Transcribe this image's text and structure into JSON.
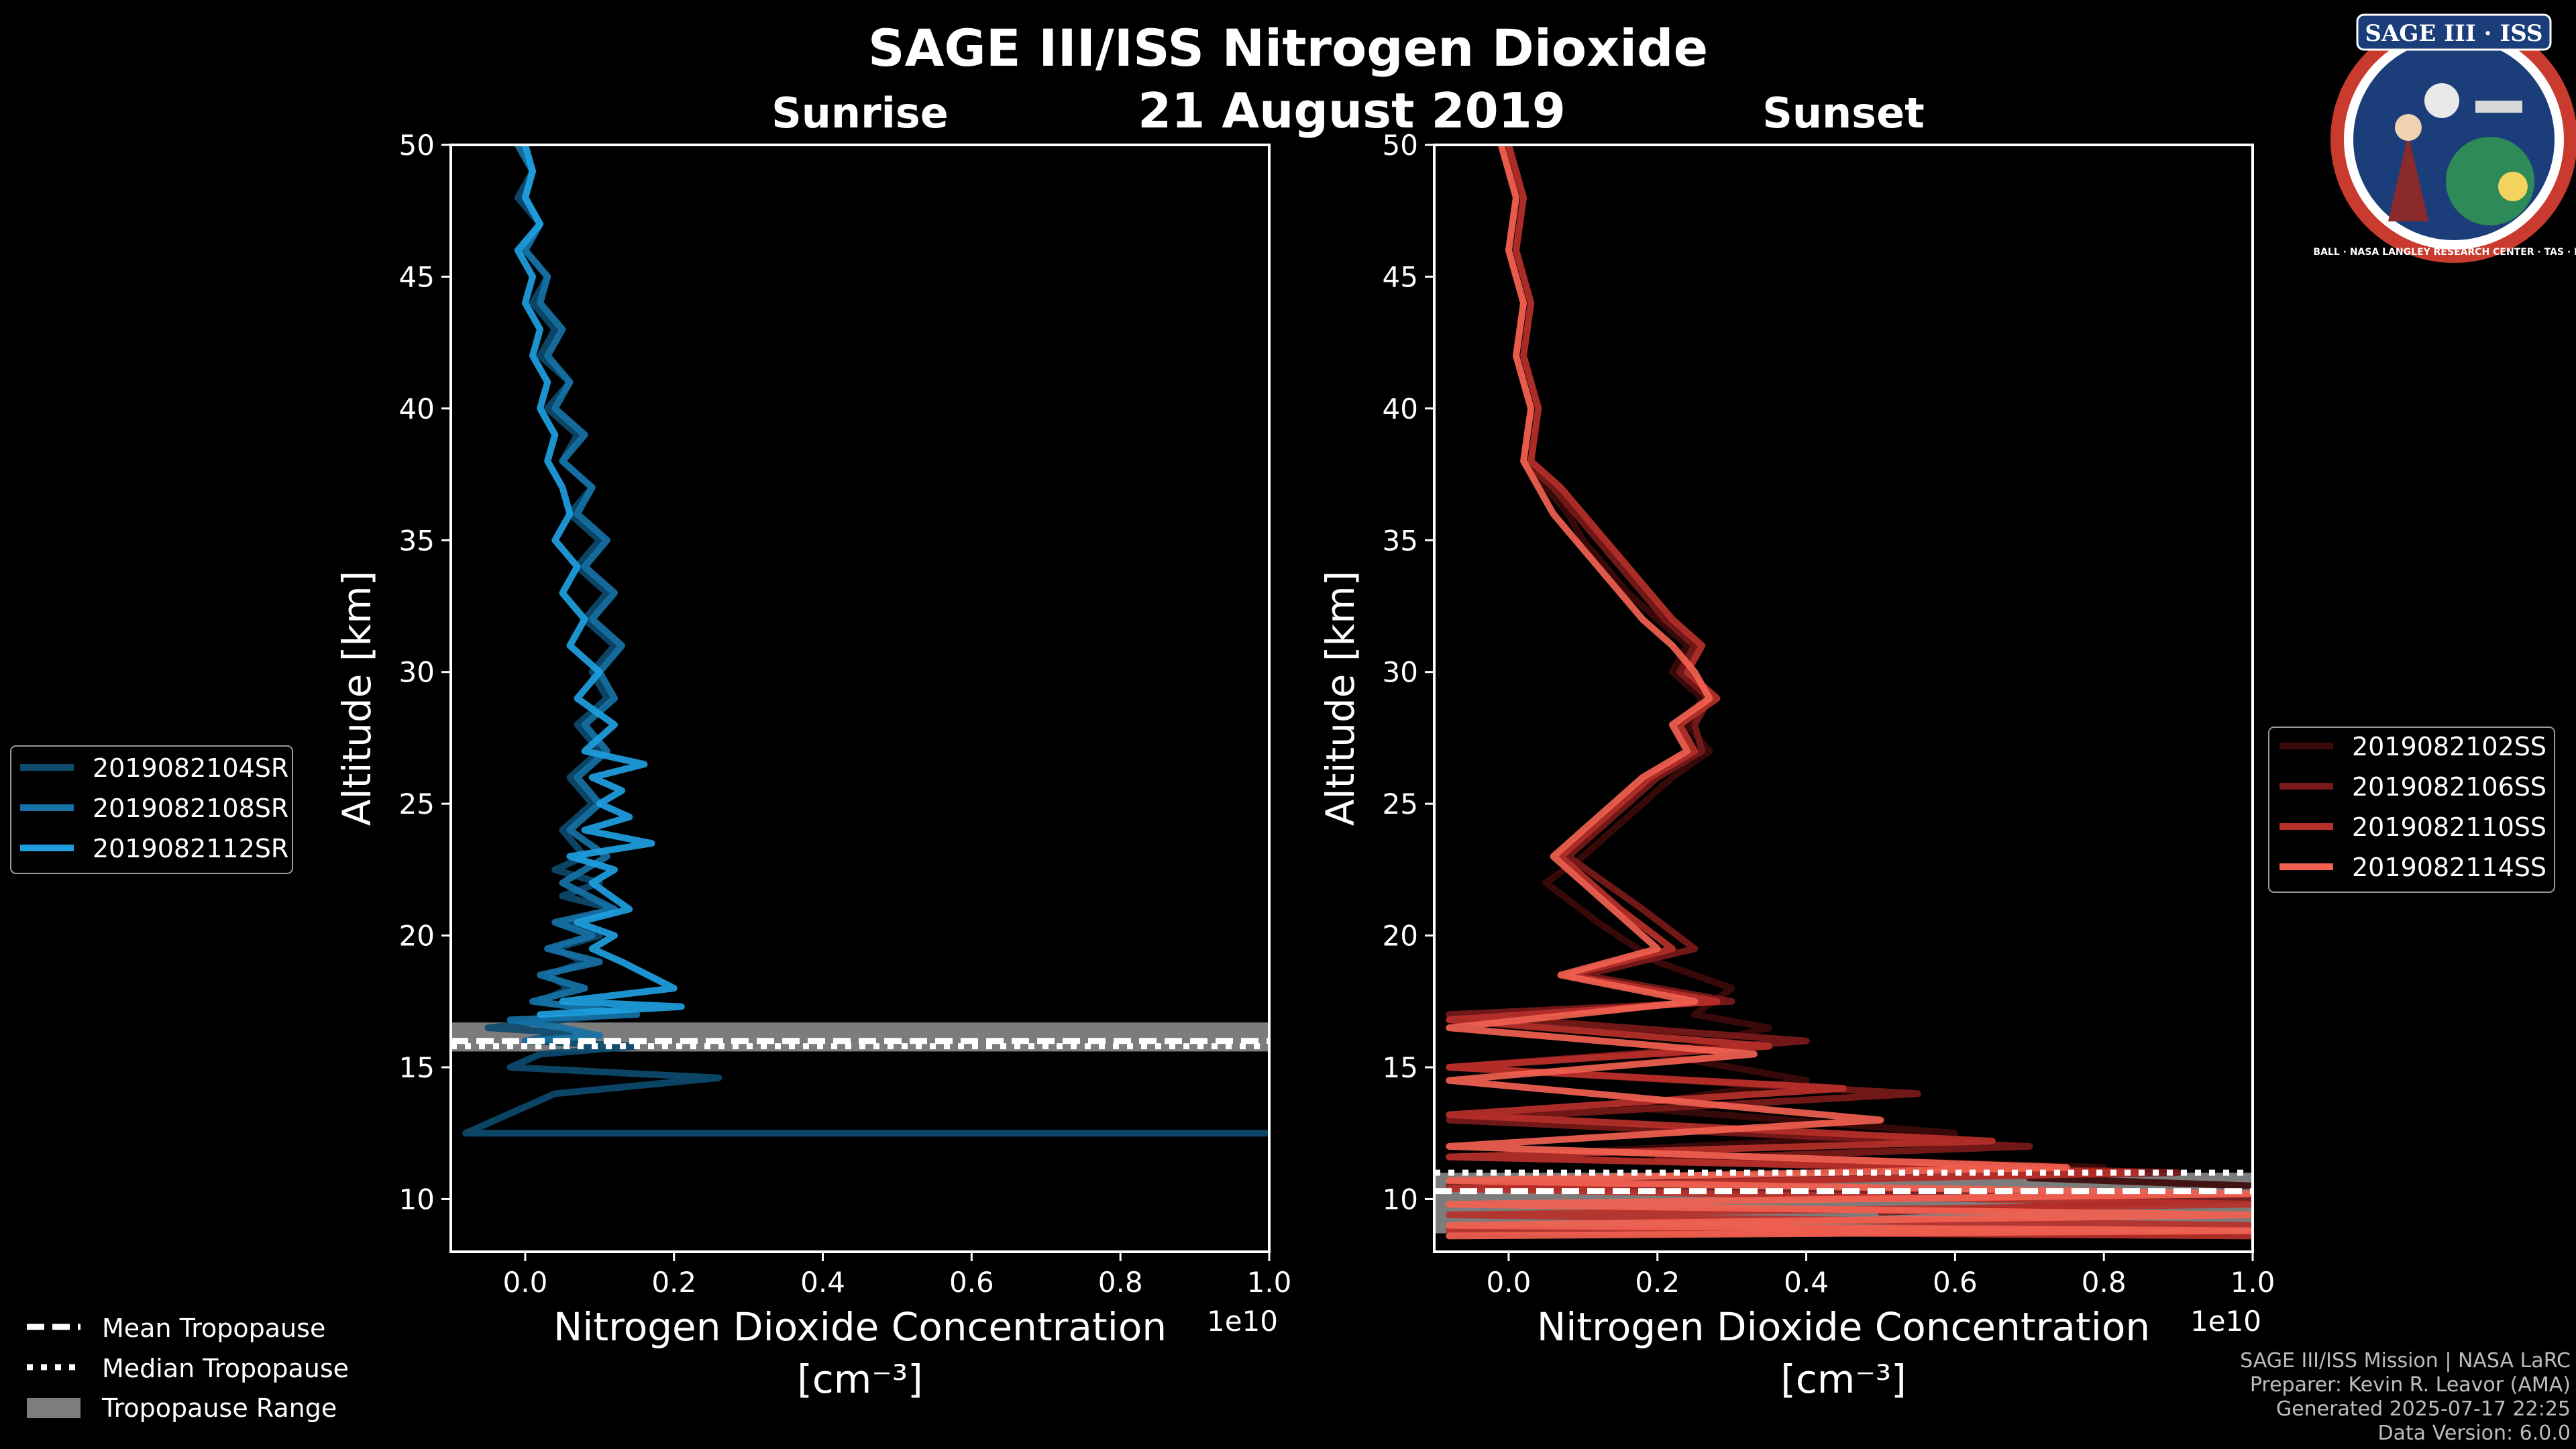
{
  "figure": {
    "title": "SAGE III/ISS Nitrogen Dioxide",
    "date": "21 August 2019",
    "colors": {
      "background": "#000000",
      "axis": "#ffffff",
      "tropopause_band": "#8a8a8a"
    }
  },
  "logo": {
    "text": "SAGE III · ISS",
    "ring_text": "BALL · NASA LANGLEY RESEARCH CENTER · TAS · ESA"
  },
  "credits": {
    "line1": "SAGE III/ISS Mission | NASA LaRC",
    "line2": "Preparer: Kevin R. Leavor (AMA)",
    "line3": "Generated 2025-07-17 22:25",
    "line4": "Data Version: 6.0.0"
  },
  "tropopause_legend": {
    "mean": "Mean Tropopause",
    "median": "Median Tropopause",
    "range": "Tropopause Range"
  },
  "chart_data": [
    {
      "type": "line",
      "title": "Sunrise",
      "xlabel": "Nitrogen Dioxide Concentration",
      "xunit": "[cm$^{-3}$]",
      "xunit_display": "[cm⁻³]",
      "ylabel": "Altitude [km]",
      "x_offset_label": "1e10",
      "xlim": [
        -0.1,
        1.0
      ],
      "ylim": [
        8,
        50
      ],
      "xticks": [
        "0.0",
        "0.2",
        "0.4",
        "0.6",
        "0.8",
        "1.0"
      ],
      "xtick_values": [
        0.0,
        0.2,
        0.4,
        0.6,
        0.8,
        1.0
      ],
      "yticks": [
        10,
        15,
        20,
        25,
        30,
        35,
        40,
        45,
        50
      ],
      "tropopause": {
        "mean": 16.0,
        "median": 15.8,
        "min": 15.6,
        "max": 16.7
      },
      "legend_position": "left-outside",
      "series": [
        {
          "name": "2019082104SR",
          "color": "#0d4a6e",
          "x": [
            0.0,
            0.01,
            -0.01,
            0.02,
            0.0,
            0.03,
            0.01,
            0.04,
            0.02,
            0.06,
            0.03,
            0.07,
            0.05,
            0.09,
            0.06,
            0.1,
            0.07,
            0.11,
            0.08,
            0.12,
            0.09,
            0.11,
            0.07,
            0.1,
            0.06,
            0.09,
            0.05,
            0.08,
            0.04,
            0.1,
            0.05,
            0.12,
            0.06,
            0.1,
            0.04,
            0.08,
            0.03,
            0.06,
            0.02,
            0.08,
            0.12,
            0.05,
            -0.05,
            0.06,
            0.0,
            0.15,
            0.02,
            -0.02,
            0.26,
            0.04,
            0.0,
            -0.08,
            1.0,
            -0.08
          ],
          "y": [
            50.0,
            49.0,
            48.0,
            47.0,
            46.0,
            45.0,
            44.0,
            43.0,
            42.0,
            41.0,
            40.0,
            39.0,
            38.0,
            37.0,
            36.0,
            35.0,
            34.0,
            33.0,
            32.0,
            31.0,
            30.0,
            29.0,
            28.0,
            27.0,
            26.0,
            25.0,
            24.0,
            23.0,
            22.5,
            22.0,
            21.5,
            21.0,
            20.5,
            20.0,
            19.5,
            19.0,
            18.5,
            18.0,
            17.5,
            17.2,
            17.0,
            16.8,
            16.5,
            16.3,
            16.0,
            15.8,
            15.5,
            15.0,
            14.6,
            14.0,
            13.5,
            12.5,
            12.5,
            12.5
          ]
        },
        {
          "name": "2019082108SR",
          "color": "#1672a6",
          "x": [
            -0.01,
            0.01,
            0.0,
            0.02,
            0.0,
            0.03,
            0.02,
            0.05,
            0.03,
            0.06,
            0.04,
            0.08,
            0.05,
            0.09,
            0.07,
            0.11,
            0.08,
            0.12,
            0.09,
            0.13,
            0.1,
            0.12,
            0.08,
            0.11,
            0.07,
            0.1,
            0.06,
            0.11,
            0.05,
            0.12,
            0.04,
            0.09,
            0.03,
            0.1,
            0.02,
            0.08,
            0.01,
            0.15,
            -0.02,
            0.05,
            0.1,
            0.0
          ],
          "y": [
            50.0,
            49.0,
            48.0,
            47.0,
            46.0,
            45.0,
            44.0,
            43.0,
            42.0,
            41.0,
            40.0,
            39.0,
            38.0,
            37.0,
            36.0,
            35.0,
            34.0,
            33.0,
            32.0,
            31.0,
            30.0,
            29.0,
            28.0,
            27.0,
            26.0,
            25.0,
            24.0,
            23.0,
            22.0,
            21.0,
            20.5,
            20.0,
            19.5,
            19.0,
            18.5,
            18.0,
            17.5,
            17.0,
            16.8,
            16.5,
            16.2,
            16.0
          ]
        },
        {
          "name": "2019082112SR",
          "color": "#1e9ee0",
          "x": [
            0.0,
            0.01,
            0.0,
            0.02,
            -0.01,
            0.01,
            0.0,
            0.02,
            0.01,
            0.03,
            0.02,
            0.04,
            0.03,
            0.05,
            0.06,
            0.04,
            0.07,
            0.05,
            0.08,
            0.06,
            0.1,
            0.07,
            0.12,
            0.08,
            0.16,
            0.09,
            0.13,
            0.1,
            0.14,
            0.08,
            0.17,
            0.06,
            0.12,
            0.09,
            0.14,
            0.07,
            0.12,
            0.09,
            0.13,
            0.2,
            0.05,
            0.21,
            0.02
          ],
          "y": [
            50.0,
            49.0,
            48.0,
            47.0,
            46.0,
            45.0,
            44.0,
            43.0,
            42.0,
            41.0,
            40.0,
            39.0,
            38.0,
            37.0,
            36.0,
            35.0,
            34.0,
            33.0,
            32.0,
            31.0,
            30.0,
            29.0,
            28.0,
            27.0,
            26.5,
            26.0,
            25.5,
            25.0,
            24.5,
            24.0,
            23.5,
            23.0,
            22.5,
            22.0,
            21.0,
            20.5,
            20.0,
            19.5,
            19.0,
            18.0,
            17.5,
            17.3,
            17.0
          ]
        }
      ]
    },
    {
      "type": "line",
      "title": "Sunset",
      "xlabel": "Nitrogen Dioxide Concentration",
      "xunit": "[cm$^{-3}$]",
      "xunit_display": "[cm⁻³]",
      "ylabel": "Altitude [km]",
      "x_offset_label": "1e10",
      "xlim": [
        -0.1,
        1.0
      ],
      "ylim": [
        8,
        50
      ],
      "xticks": [
        "0.0",
        "0.2",
        "0.4",
        "0.6",
        "0.8",
        "1.0"
      ],
      "xtick_values": [
        0.0,
        0.2,
        0.4,
        0.6,
        0.8,
        1.0
      ],
      "yticks": [
        10,
        15,
        20,
        25,
        30,
        35,
        40,
        45,
        50
      ],
      "tropopause": {
        "mean": 10.3,
        "median": 11.0,
        "min": 8.7,
        "max": 11.0
      },
      "legend_position": "right-outside",
      "series": [
        {
          "name": "2019082102SS",
          "color": "#3d0a0a",
          "x": [
            0.0,
            0.01,
            0.0,
            0.02,
            0.01,
            0.03,
            0.02,
            0.05,
            0.08,
            0.1,
            0.13,
            0.16,
            0.2,
            0.24,
            0.22,
            0.26,
            0.24,
            0.27,
            0.22,
            0.18,
            0.14,
            0.1,
            0.05,
            0.12,
            0.2,
            0.3,
            0.25,
            0.35,
            0.2,
            0.4,
            0.15,
            0.6,
            0.1,
            0.8,
            0.7,
            1.0
          ],
          "y": [
            50.0,
            48.0,
            46.0,
            44.0,
            42.0,
            40.0,
            38.0,
            37.0,
            36.0,
            35.0,
            34.0,
            33.0,
            32.0,
            31.0,
            30.0,
            29.0,
            28.0,
            27.0,
            26.0,
            25.0,
            24.0,
            23.0,
            22.0,
            20.5,
            19.0,
            18.0,
            17.0,
            16.5,
            15.5,
            14.5,
            13.5,
            12.5,
            11.8,
            11.2,
            10.8,
            10.5
          ]
        },
        {
          "name": "2019082106SS",
          "color": "#7a1a1a",
          "x": [
            -0.01,
            0.01,
            0.0,
            0.02,
            0.01,
            0.03,
            0.02,
            0.06,
            0.09,
            0.12,
            0.15,
            0.18,
            0.21,
            0.25,
            0.23,
            0.27,
            0.25,
            0.26,
            0.2,
            0.16,
            0.12,
            0.08,
            0.18,
            0.25,
            0.1,
            0.3,
            -0.08,
            0.4,
            -0.08,
            0.55,
            -0.08,
            0.7,
            0.2,
            0.9,
            -0.08,
            1.0,
            0.5
          ],
          "y": [
            50.0,
            48.0,
            46.0,
            44.0,
            42.0,
            40.0,
            38.0,
            37.0,
            36.0,
            35.0,
            34.0,
            33.0,
            32.0,
            31.0,
            30.0,
            29.0,
            28.0,
            27.0,
            26.0,
            25.0,
            24.0,
            23.0,
            21.0,
            19.5,
            18.5,
            17.5,
            17.0,
            16.0,
            15.0,
            14.0,
            13.0,
            12.0,
            11.5,
            11.0,
            10.5,
            10.0,
            9.5
          ]
        },
        {
          "name": "2019082110SS",
          "color": "#b8302a",
          "x": [
            0.0,
            0.02,
            0.01,
            0.03,
            0.02,
            0.04,
            0.03,
            0.07,
            0.1,
            0.13,
            0.16,
            0.19,
            0.22,
            0.26,
            0.24,
            0.28,
            0.23,
            0.25,
            0.19,
            0.15,
            0.11,
            0.07,
            0.15,
            0.22,
            0.08,
            0.28,
            -0.08,
            0.35,
            -0.08,
            0.45,
            -0.08,
            0.65,
            -0.08,
            0.85,
            -0.08,
            1.0,
            -0.08,
            1.0,
            -0.08,
            1.0
          ],
          "y": [
            50.0,
            48.0,
            46.0,
            44.0,
            42.0,
            40.0,
            38.0,
            37.0,
            36.0,
            35.0,
            34.0,
            33.0,
            32.0,
            31.0,
            30.0,
            29.0,
            28.0,
            27.0,
            26.0,
            25.0,
            24.0,
            23.0,
            21.0,
            19.5,
            18.5,
            17.5,
            16.8,
            15.8,
            15.0,
            14.2,
            13.2,
            12.2,
            11.6,
            11.0,
            10.4,
            9.8,
            9.4,
            9.0,
            8.8,
            8.6
          ]
        },
        {
          "name": "2019082114SS",
          "color": "#f26150",
          "x": [
            -0.01,
            0.01,
            0.0,
            0.02,
            0.01,
            0.03,
            0.02,
            0.04,
            0.06,
            0.09,
            0.12,
            0.15,
            0.18,
            0.22,
            0.25,
            0.27,
            0.22,
            0.24,
            0.18,
            0.14,
            0.1,
            0.06,
            0.14,
            0.2,
            0.07,
            0.25,
            -0.08,
            0.33,
            -0.08,
            0.5,
            -0.08,
            0.75,
            -0.08,
            1.0,
            -0.08,
            1.0,
            -0.08,
            1.0,
            -0.08
          ],
          "y": [
            50.0,
            48.0,
            46.0,
            44.0,
            42.0,
            40.0,
            38.0,
            37.0,
            36.0,
            35.0,
            34.0,
            33.0,
            32.0,
            31.0,
            30.0,
            29.0,
            28.0,
            27.0,
            26.0,
            25.0,
            24.0,
            23.0,
            21.0,
            19.5,
            18.5,
            17.5,
            16.5,
            15.5,
            14.5,
            13.0,
            12.0,
            11.2,
            10.7,
            10.2,
            9.8,
            9.4,
            9.0,
            8.8,
            8.6
          ]
        }
      ]
    }
  ]
}
